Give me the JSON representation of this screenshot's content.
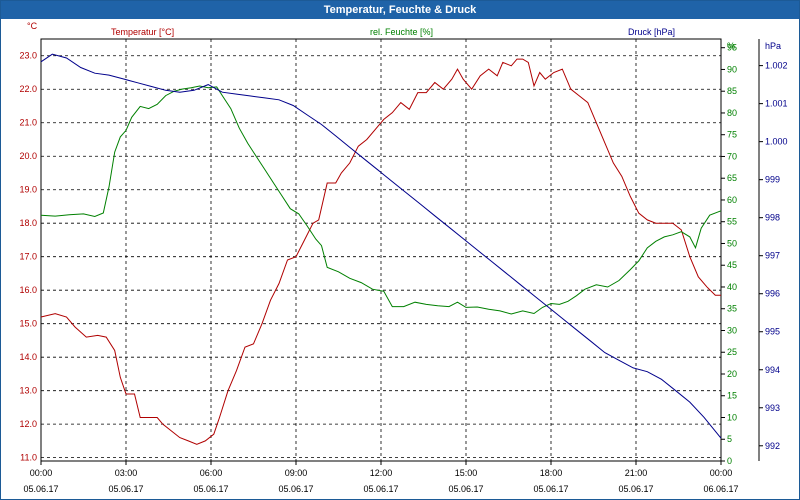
{
  "title": "Temperatur, Feuchte & Druck",
  "chart_data": {
    "type": "line",
    "x_tick_labels": [
      {
        "time": "00:00",
        "date": "05.06.17"
      },
      {
        "time": "03:00",
        "date": "05.06.17"
      },
      {
        "time": "06:00",
        "date": "05.06.17"
      },
      {
        "time": "09:00",
        "date": "05.06.17"
      },
      {
        "time": "12:00",
        "date": "05.06.17"
      },
      {
        "time": "15:00",
        "date": "05.06.17"
      },
      {
        "time": "18:00",
        "date": "05.06.17"
      },
      {
        "time": "21:00",
        "date": "05.06.17"
      },
      {
        "time": "00:00",
        "date": "06.06.17"
      }
    ],
    "xlim_hours": [
      0,
      24
    ],
    "grid": true,
    "axes": {
      "temperature": {
        "label": "Temperatur [°C]",
        "unit": "°C",
        "min": 10.9,
        "max": 23.5,
        "ticks": [
          "11.0",
          "12.0",
          "13.0",
          "14.0",
          "15.0",
          "16.0",
          "17.0",
          "18.0",
          "19.0",
          "20.0",
          "21.0",
          "22.0",
          "23.0"
        ],
        "color": "#b00000"
      },
      "humidity": {
        "label": "rel. Feuchte [%]",
        "unit": "%",
        "min": 0,
        "max": 97,
        "ticks": [
          "0",
          "5",
          "10",
          "15",
          "20",
          "25",
          "30",
          "35",
          "40",
          "45",
          "50",
          "55",
          "60",
          "65",
          "70",
          "75",
          "80",
          "85",
          "90",
          "95"
        ],
        "color": "#008000"
      },
      "pressure": {
        "label": "Druck [hPa]",
        "unit": "hPa",
        "min": 991.6,
        "max": 1002.7,
        "ticks": [
          "992",
          "993",
          "994",
          "995",
          "996",
          "997",
          "998",
          "999",
          "1.000",
          "1.001",
          "1.002"
        ],
        "color": "#00008b"
      }
    },
    "series": [
      {
        "name": "Temperatur [°C]",
        "axis": "temperature",
        "color": "#b00000",
        "points": [
          [
            0,
            15.2
          ],
          [
            0.5,
            15.3
          ],
          [
            0.9,
            15.2
          ],
          [
            1.2,
            14.9
          ],
          [
            1.6,
            14.6
          ],
          [
            2.0,
            14.65
          ],
          [
            2.3,
            14.6
          ],
          [
            2.6,
            14.2
          ],
          [
            2.8,
            13.4
          ],
          [
            3.0,
            12.9
          ],
          [
            3.3,
            12.9
          ],
          [
            3.5,
            12.2
          ],
          [
            3.8,
            12.2
          ],
          [
            4.1,
            12.2
          ],
          [
            4.3,
            12.0
          ],
          [
            4.6,
            11.8
          ],
          [
            4.9,
            11.6
          ],
          [
            5.2,
            11.5
          ],
          [
            5.5,
            11.4
          ],
          [
            5.8,
            11.5
          ],
          [
            6.1,
            11.7
          ],
          [
            6.3,
            12.2
          ],
          [
            6.6,
            13.0
          ],
          [
            6.9,
            13.6
          ],
          [
            7.2,
            14.3
          ],
          [
            7.5,
            14.4
          ],
          [
            7.8,
            15.0
          ],
          [
            8.1,
            15.7
          ],
          [
            8.4,
            16.2
          ],
          [
            8.7,
            16.9
          ],
          [
            9.0,
            17.0
          ],
          [
            9.3,
            17.5
          ],
          [
            9.6,
            18.0
          ],
          [
            9.8,
            18.1
          ],
          [
            10.1,
            19.2
          ],
          [
            10.4,
            19.2
          ],
          [
            10.6,
            19.5
          ],
          [
            10.9,
            19.8
          ],
          [
            11.2,
            20.3
          ],
          [
            11.5,
            20.5
          ],
          [
            11.8,
            20.8
          ],
          [
            12.1,
            21.1
          ],
          [
            12.4,
            21.3
          ],
          [
            12.7,
            21.6
          ],
          [
            13.0,
            21.4
          ],
          [
            13.3,
            21.9
          ],
          [
            13.6,
            21.9
          ],
          [
            13.9,
            22.2
          ],
          [
            14.2,
            22.0
          ],
          [
            14.5,
            22.3
          ],
          [
            14.7,
            22.6
          ],
          [
            14.9,
            22.3
          ],
          [
            15.2,
            22.0
          ],
          [
            15.5,
            22.4
          ],
          [
            15.8,
            22.6
          ],
          [
            16.1,
            22.4
          ],
          [
            16.3,
            22.8
          ],
          [
            16.6,
            22.7
          ],
          [
            16.8,
            22.9
          ],
          [
            17.0,
            22.9
          ],
          [
            17.2,
            22.8
          ],
          [
            17.4,
            22.1
          ],
          [
            17.6,
            22.5
          ],
          [
            17.8,
            22.3
          ],
          [
            18.1,
            22.5
          ],
          [
            18.4,
            22.6
          ],
          [
            18.7,
            22.0
          ],
          [
            19.0,
            21.8
          ],
          [
            19.3,
            21.6
          ],
          [
            19.6,
            21.0
          ],
          [
            19.9,
            20.4
          ],
          [
            20.2,
            19.8
          ],
          [
            20.5,
            19.4
          ],
          [
            20.8,
            18.8
          ],
          [
            21.1,
            18.3
          ],
          [
            21.4,
            18.1
          ],
          [
            21.7,
            18.0
          ],
          [
            22.0,
            18.0
          ],
          [
            22.3,
            18.0
          ],
          [
            22.6,
            17.8
          ],
          [
            22.9,
            17.0
          ],
          [
            23.2,
            16.4
          ],
          [
            23.5,
            16.1
          ],
          [
            23.8,
            15.85
          ],
          [
            24.0,
            15.85
          ]
        ]
      },
      {
        "name": "rel. Feuchte [%]",
        "axis": "humidity",
        "color": "#008000",
        "points": [
          [
            0,
            56.5
          ],
          [
            0.5,
            56.3
          ],
          [
            1.0,
            56.6
          ],
          [
            1.5,
            56.8
          ],
          [
            1.9,
            56.2
          ],
          [
            2.2,
            57.0
          ],
          [
            2.4,
            63.0
          ],
          [
            2.6,
            71.0
          ],
          [
            2.8,
            74.5
          ],
          [
            3.0,
            76.0
          ],
          [
            3.2,
            79.0
          ],
          [
            3.5,
            81.5
          ],
          [
            3.8,
            81.0
          ],
          [
            4.1,
            82.0
          ],
          [
            4.4,
            84.0
          ],
          [
            4.7,
            85.0
          ],
          [
            5.0,
            85.5
          ],
          [
            5.3,
            85.8
          ],
          [
            5.6,
            86.2
          ],
          [
            5.9,
            85.8
          ],
          [
            6.2,
            86.0
          ],
          [
            6.4,
            84.0
          ],
          [
            6.7,
            81.0
          ],
          [
            7.0,
            76.5
          ],
          [
            7.3,
            73.0
          ],
          [
            7.6,
            70.0
          ],
          [
            7.9,
            67.0
          ],
          [
            8.2,
            64.0
          ],
          [
            8.5,
            61.0
          ],
          [
            8.8,
            58.0
          ],
          [
            9.1,
            56.8
          ],
          [
            9.4,
            54.0
          ],
          [
            9.7,
            51.0
          ],
          [
            9.9,
            49.5
          ],
          [
            10.1,
            44.5
          ],
          [
            10.5,
            43.5
          ],
          [
            10.9,
            42.0
          ],
          [
            11.3,
            41.0
          ],
          [
            11.7,
            39.5
          ],
          [
            12.1,
            39.0
          ],
          [
            12.4,
            35.5
          ],
          [
            12.8,
            35.5
          ],
          [
            13.2,
            36.5
          ],
          [
            13.6,
            36.0
          ],
          [
            14.0,
            35.7
          ],
          [
            14.4,
            35.5
          ],
          [
            14.7,
            36.5
          ],
          [
            15.0,
            35.3
          ],
          [
            15.4,
            35.4
          ],
          [
            15.8,
            34.9
          ],
          [
            16.2,
            34.5
          ],
          [
            16.6,
            33.8
          ],
          [
            17.0,
            34.5
          ],
          [
            17.4,
            33.9
          ],
          [
            17.7,
            35.3
          ],
          [
            18.0,
            36.2
          ],
          [
            18.3,
            36.0
          ],
          [
            18.6,
            36.7
          ],
          [
            18.9,
            38.0
          ],
          [
            19.2,
            39.5
          ],
          [
            19.6,
            40.5
          ],
          [
            20.0,
            40.0
          ],
          [
            20.4,
            41.5
          ],
          [
            20.8,
            44.0
          ],
          [
            21.1,
            46.0
          ],
          [
            21.4,
            49.0
          ],
          [
            21.7,
            50.5
          ],
          [
            22.0,
            51.5
          ],
          [
            22.3,
            52.0
          ],
          [
            22.6,
            52.7
          ],
          [
            22.9,
            51.5
          ],
          [
            23.1,
            49.0
          ],
          [
            23.3,
            53.5
          ],
          [
            23.6,
            56.5
          ],
          [
            24.0,
            57.5
          ]
        ]
      },
      {
        "name": "Druck [hPa]",
        "axis": "pressure",
        "color": "#00008b",
        "points": [
          [
            0,
            1002.1
          ],
          [
            0.4,
            1002.3
          ],
          [
            0.9,
            1002.2
          ],
          [
            1.4,
            1001.95
          ],
          [
            1.9,
            1001.8
          ],
          [
            2.4,
            1001.75
          ],
          [
            2.9,
            1001.65
          ],
          [
            3.4,
            1001.55
          ],
          [
            3.9,
            1001.45
          ],
          [
            4.4,
            1001.35
          ],
          [
            4.9,
            1001.3
          ],
          [
            5.4,
            1001.35
          ],
          [
            5.9,
            1001.5
          ],
          [
            6.4,
            1001.3
          ],
          [
            6.9,
            1001.25
          ],
          [
            7.4,
            1001.2
          ],
          [
            7.9,
            1001.15
          ],
          [
            8.4,
            1001.1
          ],
          [
            8.9,
            1000.95
          ],
          [
            9.4,
            1000.7
          ],
          [
            9.9,
            1000.45
          ],
          [
            10.4,
            1000.15
          ],
          [
            10.9,
            999.85
          ],
          [
            11.4,
            999.55
          ],
          [
            11.9,
            999.25
          ],
          [
            12.4,
            998.95
          ],
          [
            12.9,
            998.65
          ],
          [
            13.4,
            998.35
          ],
          [
            13.9,
            998.05
          ],
          [
            14.4,
            997.75
          ],
          [
            14.9,
            997.45
          ],
          [
            15.4,
            997.15
          ],
          [
            15.9,
            996.85
          ],
          [
            16.4,
            996.55
          ],
          [
            16.9,
            996.25
          ],
          [
            17.4,
            995.95
          ],
          [
            17.9,
            995.65
          ],
          [
            18.4,
            995.35
          ],
          [
            18.9,
            995.05
          ],
          [
            19.4,
            994.75
          ],
          [
            19.9,
            994.45
          ],
          [
            20.4,
            994.25
          ],
          [
            20.9,
            994.05
          ],
          [
            21.4,
            993.95
          ],
          [
            21.9,
            993.75
          ],
          [
            22.4,
            993.45
          ],
          [
            22.9,
            993.15
          ],
          [
            23.4,
            992.75
          ],
          [
            24.0,
            992.2
          ]
        ]
      }
    ]
  }
}
